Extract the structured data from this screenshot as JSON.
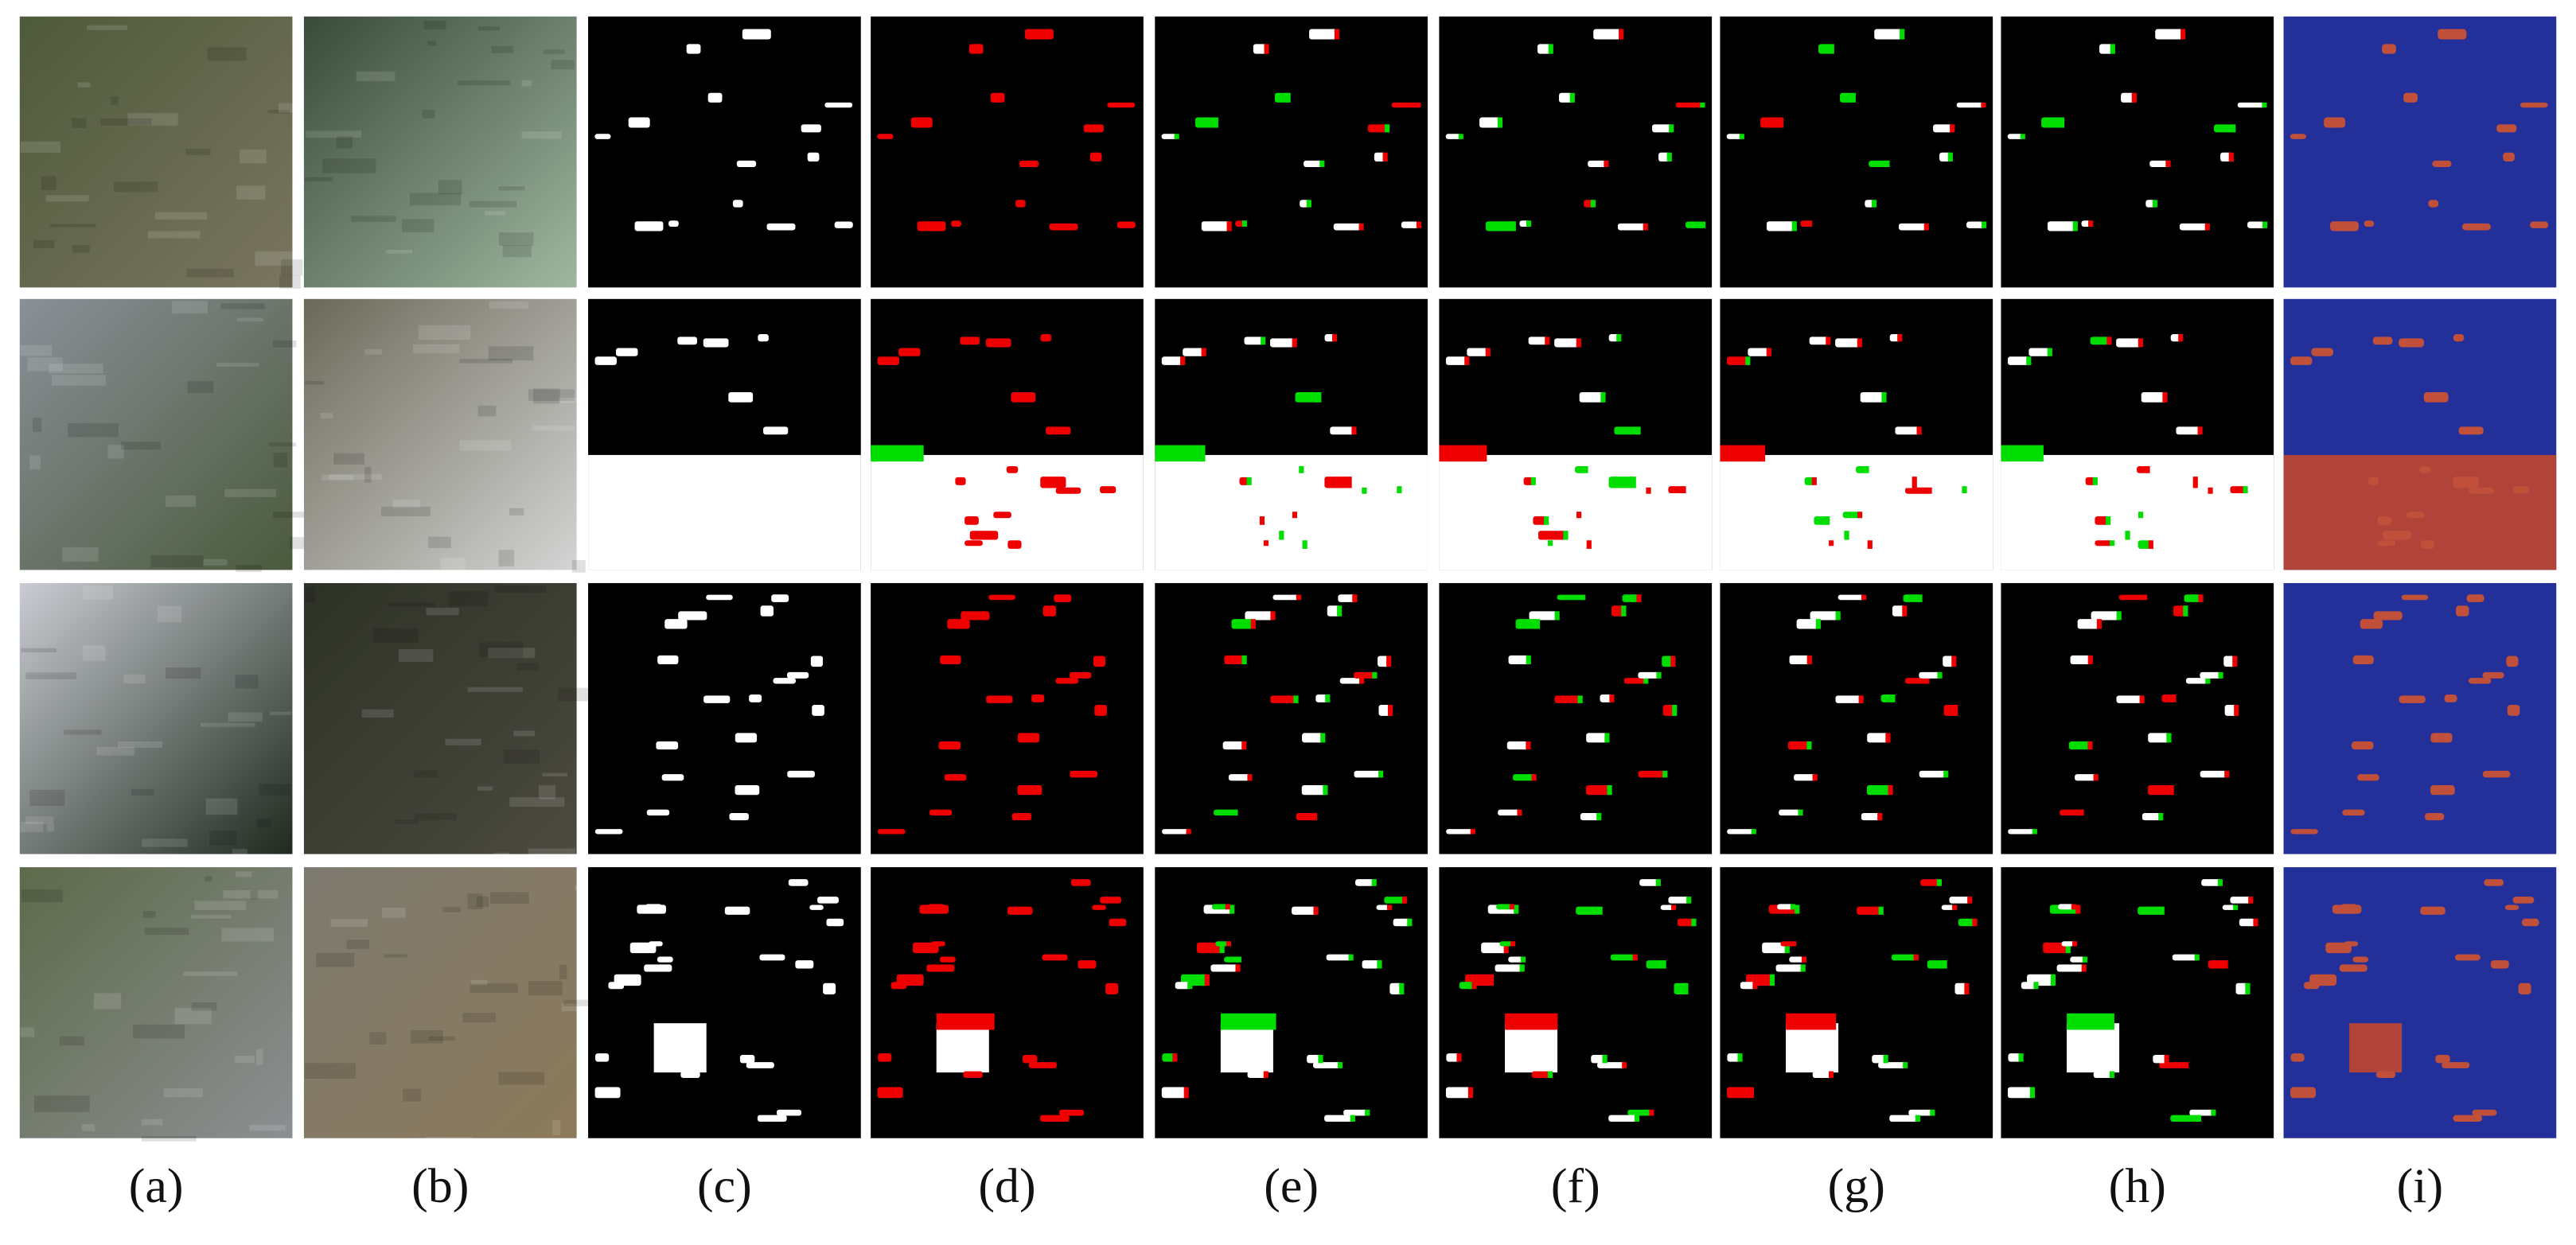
{
  "columns": [
    {
      "label": "(a)"
    },
    {
      "label": "(b)"
    },
    {
      "label": "(c)"
    },
    {
      "label": "(d)"
    },
    {
      "label": "(e)"
    },
    {
      "label": "(f)"
    },
    {
      "label": "(g)"
    },
    {
      "label": "(h)"
    },
    {
      "label": "(i)"
    }
  ]
}
